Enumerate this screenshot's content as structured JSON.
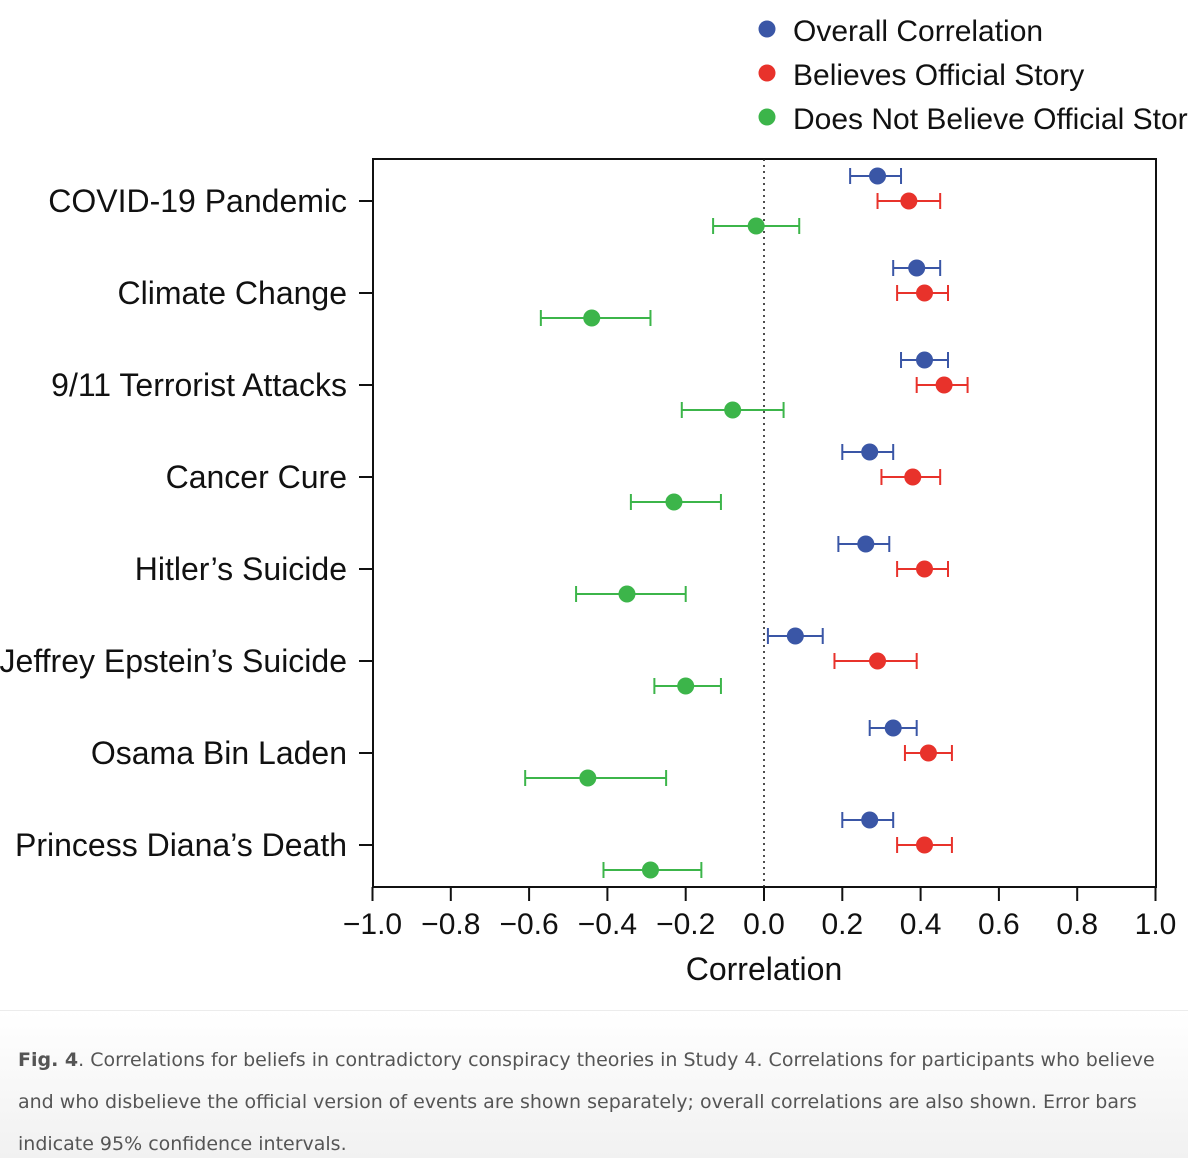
{
  "chart_data": {
    "type": "scatter",
    "orientation": "horizontal",
    "xlabel": "Correlation",
    "xlim": [
      -1.0,
      1.0
    ],
    "xticks": [
      "−1.0",
      "−0.8",
      "−0.6",
      "−0.4",
      "−0.2",
      "0.0",
      "0.2",
      "0.4",
      "0.6",
      "0.8",
      "1.0"
    ],
    "reference_line": 0.0,
    "legend_position": "top-right",
    "categories": [
      "COVID-19 Pandemic",
      "Climate Change",
      "9/11 Terrorist Attacks",
      "Cancer Cure",
      "Hitler’s Suicide",
      "Jeffrey Epstein’s Suicide",
      "Osama Bin Laden",
      "Princess Diana’s Death"
    ],
    "series": [
      {
        "name": "Overall Correlation",
        "color": "#3a56a6",
        "values": [
          0.29,
          0.39,
          0.41,
          0.27,
          0.26,
          0.08,
          0.33,
          0.27
        ],
        "ci_low": [
          0.22,
          0.33,
          0.35,
          0.2,
          0.19,
          0.01,
          0.27,
          0.2
        ],
        "ci_high": [
          0.35,
          0.45,
          0.47,
          0.33,
          0.32,
          0.15,
          0.39,
          0.33
        ]
      },
      {
        "name": "Believes Official Story",
        "color": "#e8322b",
        "values": [
          0.37,
          0.41,
          0.46,
          0.38,
          0.41,
          0.29,
          0.42,
          0.41
        ],
        "ci_low": [
          0.29,
          0.34,
          0.39,
          0.3,
          0.34,
          0.18,
          0.36,
          0.34
        ],
        "ci_high": [
          0.45,
          0.47,
          0.52,
          0.45,
          0.47,
          0.39,
          0.48,
          0.48
        ]
      },
      {
        "name": "Does Not Believe Official Story",
        "color": "#3cb54a",
        "values": [
          -0.02,
          -0.44,
          -0.08,
          -0.23,
          -0.35,
          -0.2,
          -0.45,
          -0.29
        ],
        "ci_low": [
          -0.13,
          -0.57,
          -0.21,
          -0.34,
          -0.48,
          -0.28,
          -0.61,
          -0.41
        ],
        "ci_high": [
          0.09,
          -0.29,
          0.05,
          -0.11,
          -0.2,
          -0.11,
          -0.25,
          -0.16
        ]
      }
    ]
  },
  "caption": {
    "label": "Fig. 4",
    "text": ". Correlations for beliefs in contradictory conspiracy theories in Study 4. Correlations for participants who believe and who disbelieve the official version of events are shown separately; overall correlations are also shown. Error bars indicate 95% confidence intervals."
  }
}
